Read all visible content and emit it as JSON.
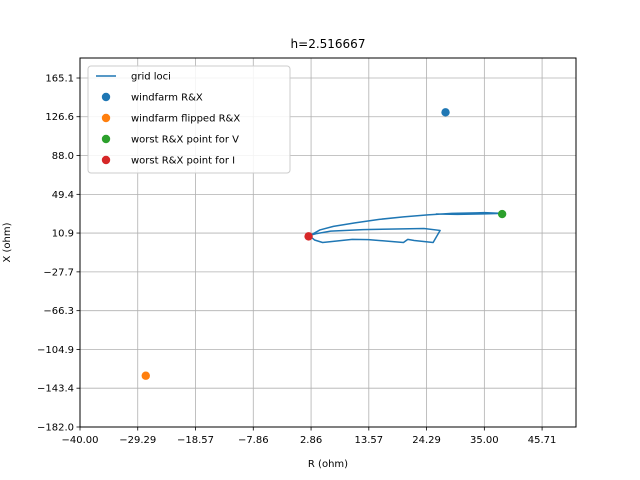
{
  "chart_data": {
    "type": "scatter",
    "title": "h=2.516667",
    "xlabel": "R (ohm)",
    "ylabel": "X (ohm)",
    "xlim": [
      -40.0,
      52.0
    ],
    "ylim": [
      -182.0,
      185.0
    ],
    "x_ticks": [
      -40.0,
      -29.29,
      -18.57,
      -7.86,
      2.86,
      13.57,
      24.29,
      35.0,
      45.71
    ],
    "x_tick_labels": [
      "−40.00",
      "−29.29",
      "−18.57",
      "−7.86",
      "2.86",
      "13.57",
      "24.29",
      "35.00",
      "45.71"
    ],
    "y_ticks": [
      -182.0,
      -143.4,
      -104.9,
      -66.3,
      -27.7,
      10.9,
      49.4,
      88.0,
      126.6,
      165.1
    ],
    "y_tick_labels": [
      "−182.0",
      "−143.4",
      "−104.9",
      "−66.3",
      "−27.7",
      "10.9",
      "49.4",
      "88.0",
      "126.6",
      "165.1"
    ],
    "grid": true,
    "legend_position": "top-left",
    "series": [
      {
        "name": "grid loci",
        "kind": "line",
        "color": "#1f77b4",
        "x": [
          2.5,
          4.0,
          6.5,
          12.5,
          23.8,
          26.8,
          25.5,
          22.0,
          20.8,
          20.0,
          13.5,
          10.5,
          5.0,
          3.5,
          2.5
        ],
        "y": [
          8.5,
          10.5,
          12.8,
          14.3,
          15.4,
          13.5,
          1.5,
          3.5,
          4.6,
          1.5,
          4.4,
          4.6,
          1.5,
          4.0,
          8.5
        ],
        "y_upper": [
          8.5,
          10.0,
          14.0,
          17.5,
          21.0,
          24.5,
          27.0,
          29.0,
          30.5,
          31.0,
          31.2,
          30.5,
          30.0,
          29.5,
          29.8
        ],
        "x_upper": [
          2.5,
          3.2,
          4.5,
          7.0,
          11.0,
          15.5,
          20.0,
          24.5,
          29.0,
          33.5,
          35.0,
          38.3,
          35.0,
          30.0,
          26.0
        ]
      },
      {
        "name": "windfarm R&X",
        "kind": "point",
        "color": "#1f77b4",
        "x": [
          27.8
        ],
        "y": [
          131.0
        ]
      },
      {
        "name": "windfarm flipped R&X",
        "kind": "point",
        "color": "#ff7f0e",
        "x": [
          -27.8
        ],
        "y": [
          -131.0
        ]
      },
      {
        "name": "worst R&X point for V",
        "kind": "point",
        "color": "#2ca02c",
        "x": [
          38.3
        ],
        "y": [
          29.8
        ]
      },
      {
        "name": "worst R&X point for I",
        "kind": "point",
        "color": "#d62728",
        "x": [
          2.4
        ],
        "y": [
          7.6
        ]
      }
    ]
  }
}
